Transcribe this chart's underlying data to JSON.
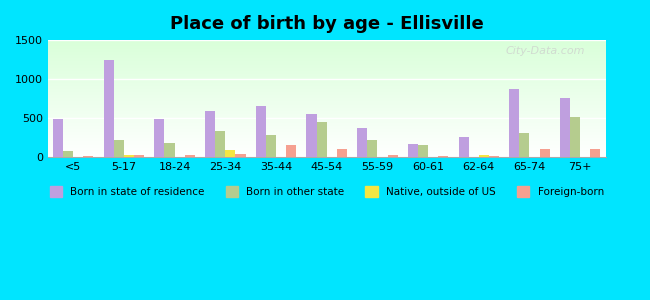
{
  "title": "Place of birth by age - Ellisville",
  "categories": [
    "<5",
    "5-17",
    "18-24",
    "25-34",
    "35-44",
    "45-54",
    "55-59",
    "60-61",
    "62-64",
    "65-74",
    "75+"
  ],
  "born_in_state": [
    490,
    1250,
    490,
    590,
    660,
    555,
    375,
    175,
    255,
    880,
    755
  ],
  "born_other_state": [
    75,
    215,
    185,
    335,
    285,
    445,
    215,
    150,
    0,
    305,
    510
  ],
  "native_outside_us": [
    0,
    30,
    0,
    90,
    0,
    0,
    0,
    0,
    30,
    0,
    0
  ],
  "foreign_born": [
    20,
    30,
    30,
    40,
    155,
    105,
    25,
    20,
    20,
    100,
    105
  ],
  "colors": {
    "born_in_state": "#bf9fdf",
    "born_other_state": "#b5cc8e",
    "native_outside_us": "#f5e642",
    "foreign_born": "#f5a090"
  },
  "ylim": [
    0,
    1500
  ],
  "yticks": [
    0,
    500,
    1000,
    1500
  ],
  "figure_background": "#00e5ff",
  "bar_width": 0.2,
  "legend_labels": [
    "Born in state of residence",
    "Born in other state",
    "Native, outside of US",
    "Foreign-born"
  ]
}
